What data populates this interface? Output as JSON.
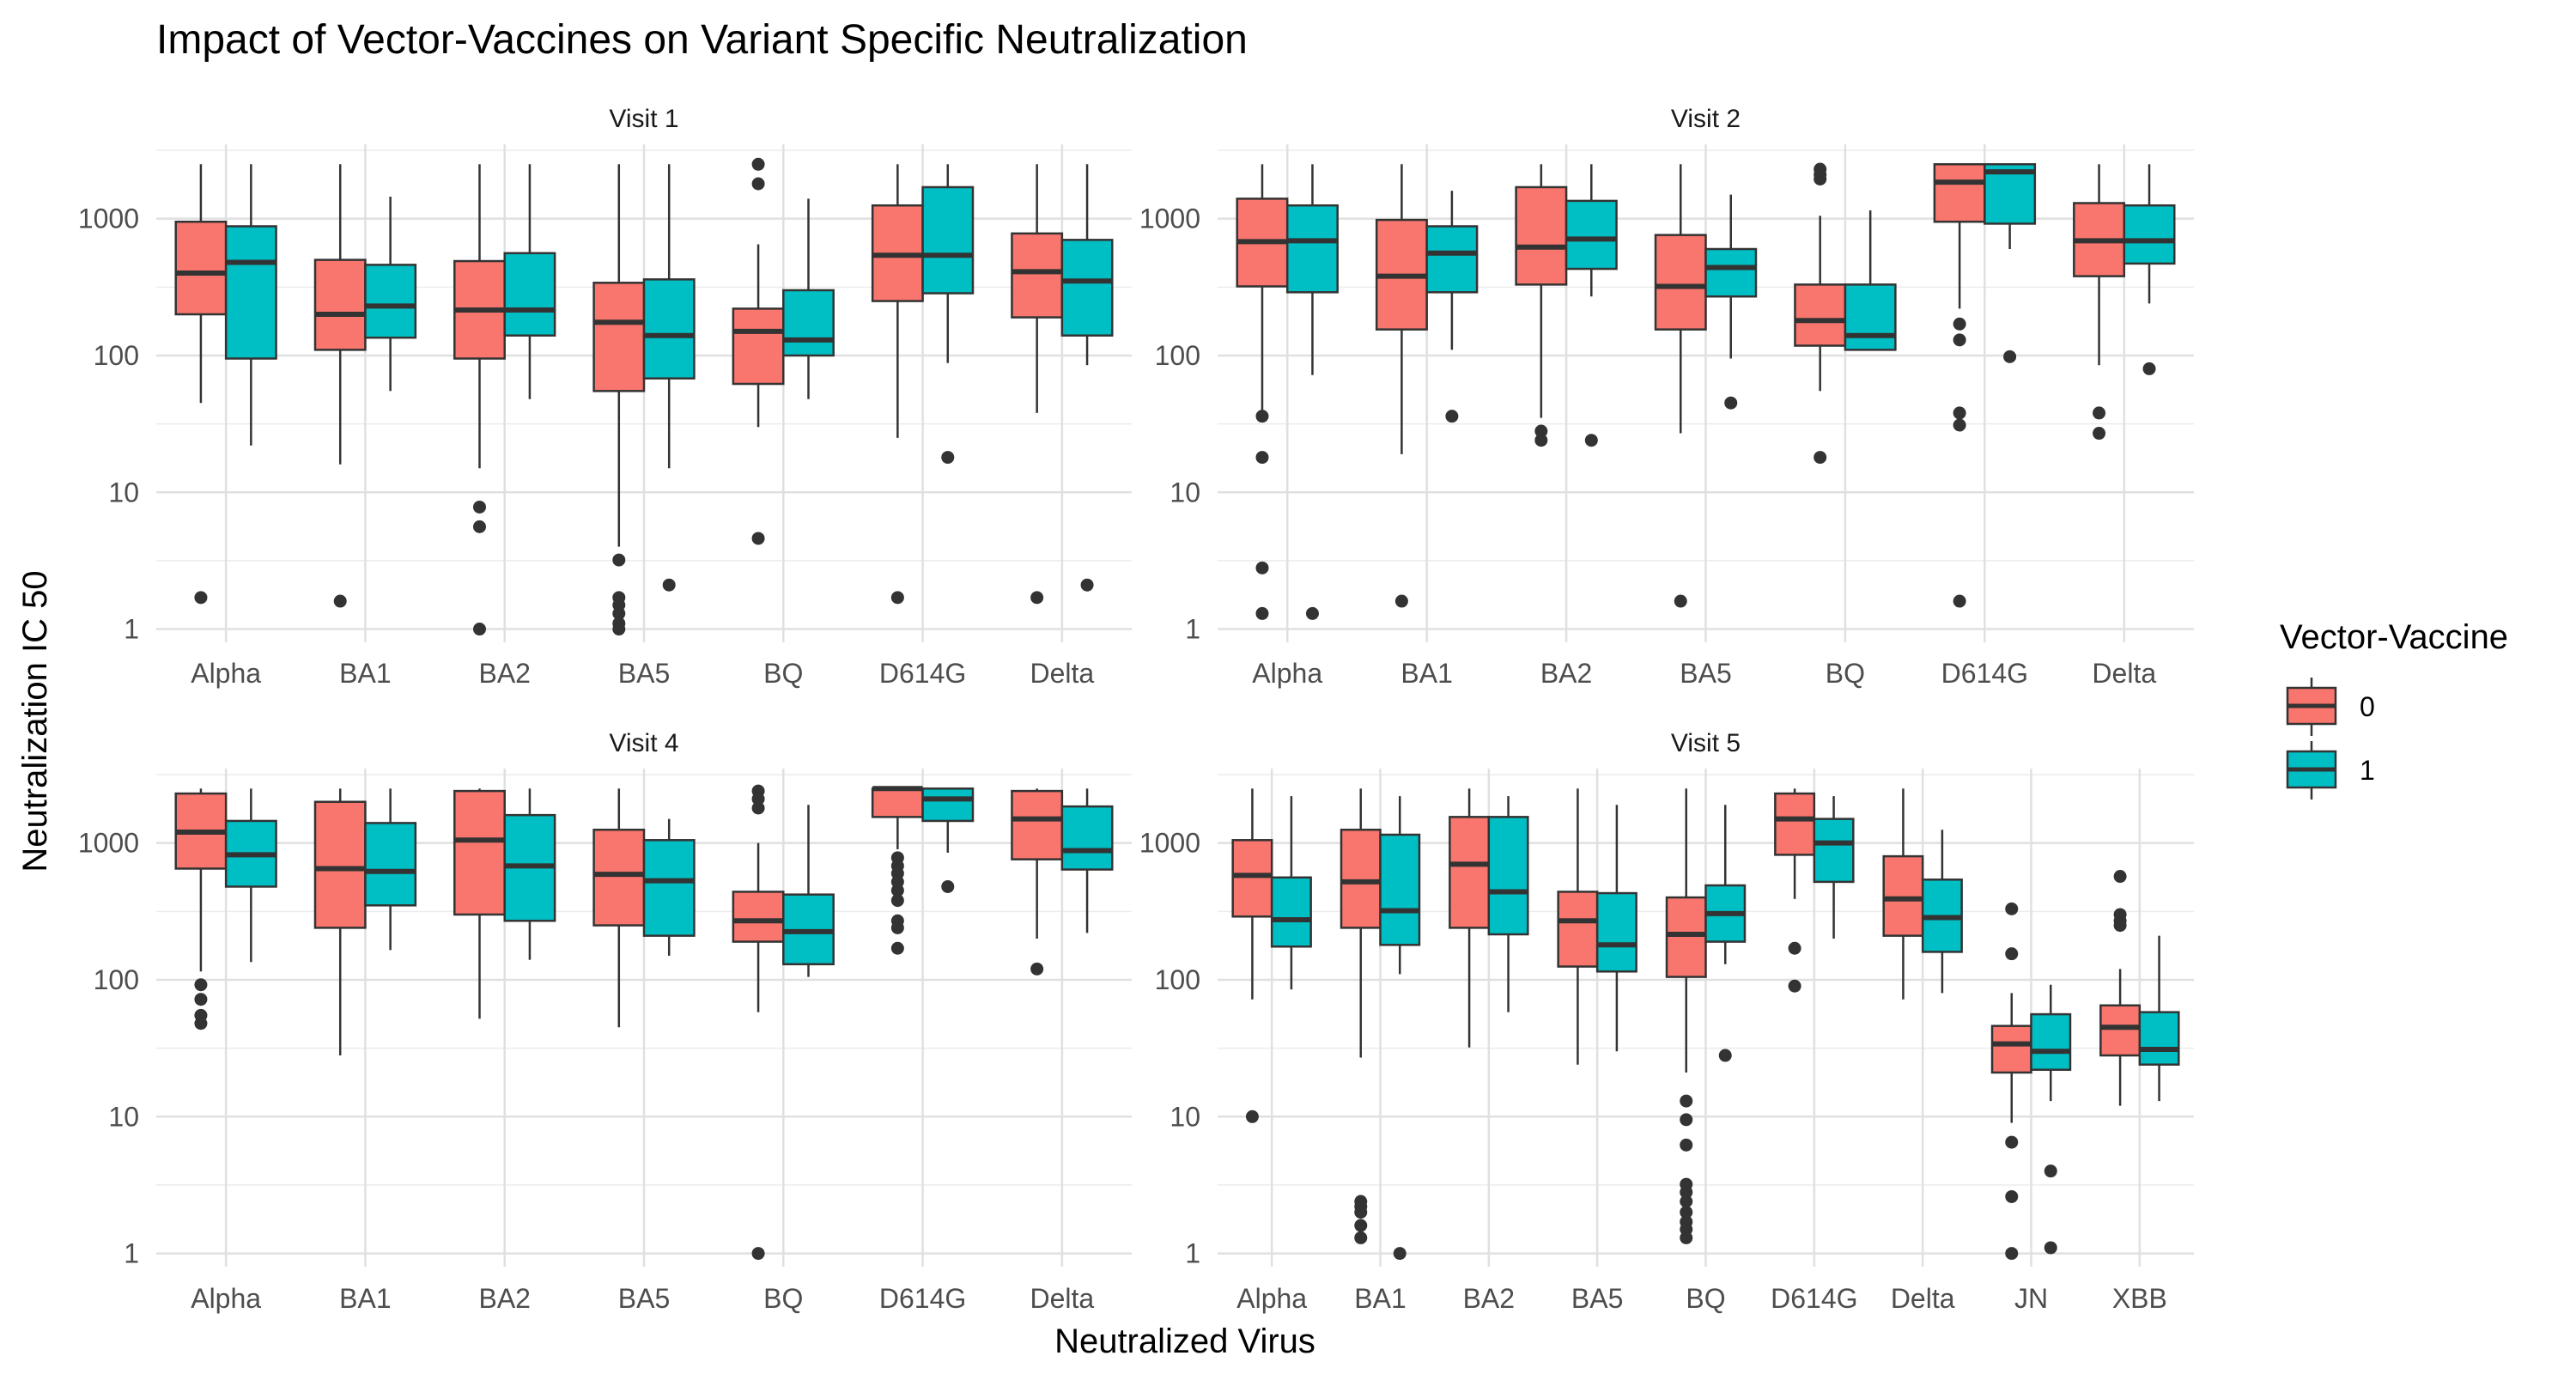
{
  "chart_data": {
    "type": "boxplot",
    "title": "Impact of Vector-Vaccines on Variant Specific Neutralization",
    "xlabel": "Neutralized Virus",
    "ylabel": "Neutralization IC 50",
    "y_scale": "log10",
    "y_ticks": [
      "1",
      "10",
      "100",
      "1000"
    ],
    "legend": {
      "title": "Vector-Vaccine",
      "position": "right",
      "items": [
        {
          "label": "0",
          "color": "#F8766D"
        },
        {
          "label": "1",
          "color": "#00BFC4"
        }
      ]
    },
    "panels": [
      {
        "name": "Visit 1",
        "ylim": [
          0.8,
          3500
        ],
        "categories": [
          "Alpha",
          "BA1",
          "BA2",
          "BA5",
          "BQ",
          "D614G",
          "Delta"
        ],
        "series": [
          {
            "name": "0",
            "boxes": [
              {
                "lo": 45,
                "q1": 200,
                "med": 400,
                "q3": 950,
                "hi": 2500,
                "out": [
                  1.7
                ]
              },
              {
                "lo": 16,
                "q1": 110,
                "med": 200,
                "q3": 500,
                "hi": 2500,
                "out": [
                  1.6
                ]
              },
              {
                "lo": 15,
                "q1": 95,
                "med": 215,
                "q3": 490,
                "hi": 2500,
                "out": [
                  7.8,
                  5.6,
                  1
                ]
              },
              {
                "lo": 4,
                "q1": 55,
                "med": 175,
                "q3": 340,
                "hi": 2500,
                "out": [
                  3.2,
                  1.7,
                  1.5,
                  1.3,
                  1.1,
                  1
                ]
              },
              {
                "lo": 30,
                "q1": 62,
                "med": 150,
                "q3": 220,
                "hi": 650,
                "out": [
                  2500,
                  1800,
                  4.6
                ]
              },
              {
                "lo": 25,
                "q1": 250,
                "med": 540,
                "q3": 1250,
                "hi": 2500,
                "out": [
                  1.7
                ]
              },
              {
                "lo": 38,
                "q1": 190,
                "med": 410,
                "q3": 780,
                "hi": 2500,
                "out": [
                  1.7
                ]
              }
            ]
          },
          {
            "name": "1",
            "boxes": [
              {
                "lo": 22,
                "q1": 95,
                "med": 480,
                "q3": 880,
                "hi": 2500,
                "out": []
              },
              {
                "lo": 55,
                "q1": 135,
                "med": 230,
                "q3": 460,
                "hi": 1450,
                "out": []
              },
              {
                "lo": 48,
                "q1": 140,
                "med": 215,
                "q3": 560,
                "hi": 2500,
                "out": []
              },
              {
                "lo": 15,
                "q1": 68,
                "med": 140,
                "q3": 360,
                "hi": 2500,
                "out": [
                  2.1
                ]
              },
              {
                "lo": 48,
                "q1": 100,
                "med": 130,
                "q3": 300,
                "hi": 1400,
                "out": []
              },
              {
                "lo": 88,
                "q1": 285,
                "med": 540,
                "q3": 1700,
                "hi": 2500,
                "out": [
                  18
                ]
              },
              {
                "lo": 85,
                "q1": 140,
                "med": 350,
                "q3": 700,
                "hi": 2500,
                "out": [
                  2.1
                ]
              }
            ]
          }
        ]
      },
      {
        "name": "Visit 2",
        "ylim": [
          0.8,
          3500
        ],
        "categories": [
          "Alpha",
          "BA1",
          "BA2",
          "BA5",
          "BQ",
          "D614G",
          "Delta"
        ],
        "series": [
          {
            "name": "0",
            "boxes": [
              {
                "lo": 40,
                "q1": 320,
                "med": 680,
                "q3": 1400,
                "hi": 2500,
                "out": [
                  36,
                  18,
                  2.8,
                  1.3
                ]
              },
              {
                "lo": 19,
                "q1": 155,
                "med": 380,
                "q3": 980,
                "hi": 2500,
                "out": [
                  1.6
                ]
              },
              {
                "lo": 35,
                "q1": 330,
                "med": 620,
                "q3": 1700,
                "hi": 2500,
                "out": [
                  28,
                  24
                ]
              },
              {
                "lo": 27,
                "q1": 155,
                "med": 320,
                "q3": 760,
                "hi": 2500,
                "out": [
                  1.6
                ]
              },
              {
                "lo": 55,
                "q1": 118,
                "med": 180,
                "q3": 330,
                "hi": 1050,
                "out": [
                  2300,
                  2100,
                  1950,
                  18
                ]
              },
              {
                "lo": 220,
                "q1": 950,
                "med": 1850,
                "q3": 2500,
                "hi": 2500,
                "out": [
                  170,
                  130,
                  38,
                  31,
                  1.6
                ]
              },
              {
                "lo": 85,
                "q1": 380,
                "med": 690,
                "q3": 1300,
                "hi": 2500,
                "out": [
                  38,
                  27
                ]
              }
            ]
          },
          {
            "name": "1",
            "boxes": [
              {
                "lo": 72,
                "q1": 290,
                "med": 690,
                "q3": 1250,
                "hi": 2500,
                "out": [
                  1.3
                ]
              },
              {
                "lo": 110,
                "q1": 290,
                "med": 560,
                "q3": 880,
                "hi": 1600,
                "out": [
                  36
                ]
              },
              {
                "lo": 270,
                "q1": 430,
                "med": 710,
                "q3": 1350,
                "hi": 2500,
                "out": [
                  24
                ]
              },
              {
                "lo": 95,
                "q1": 270,
                "med": 440,
                "q3": 600,
                "hi": 1500,
                "out": [
                  45
                ]
              },
              {
                "lo": 110,
                "q1": 110,
                "med": 140,
                "q3": 330,
                "hi": 1150,
                "out": []
              },
              {
                "lo": 600,
                "q1": 920,
                "med": 2200,
                "q3": 2500,
                "hi": 2500,
                "out": [
                  98
                ]
              },
              {
                "lo": 240,
                "q1": 470,
                "med": 690,
                "q3": 1250,
                "hi": 2500,
                "out": [
                  80
                ]
              }
            ]
          }
        ]
      },
      {
        "name": "Visit 4",
        "ylim": [
          0.8,
          3500
        ],
        "categories": [
          "Alpha",
          "BA1",
          "BA2",
          "BA5",
          "BQ",
          "D614G",
          "Delta"
        ],
        "series": [
          {
            "name": "0",
            "boxes": [
              {
                "lo": 115,
                "q1": 650,
                "med": 1200,
                "q3": 2300,
                "hi": 2500,
                "out": [
                  92,
                  72,
                  55,
                  48
                ]
              },
              {
                "lo": 28,
                "q1": 240,
                "med": 650,
                "q3": 2000,
                "hi": 2500,
                "out": []
              },
              {
                "lo": 52,
                "q1": 300,
                "med": 1050,
                "q3": 2400,
                "hi": 2500,
                "out": []
              },
              {
                "lo": 45,
                "q1": 250,
                "med": 590,
                "q3": 1250,
                "hi": 2500,
                "out": []
              },
              {
                "lo": 58,
                "q1": 190,
                "med": 270,
                "q3": 440,
                "hi": 1000,
                "out": [
                  2400,
                  2100,
                  1800,
                  1
                ]
              },
              {
                "lo": 900,
                "q1": 1550,
                "med": 2500,
                "q3": 2500,
                "hi": 2500,
                "out": [
                  780,
                  680,
                  600,
                  520,
                  450,
                  380,
                  270,
                  240,
                  170
                ]
              },
              {
                "lo": 200,
                "q1": 760,
                "med": 1500,
                "q3": 2400,
                "hi": 2500,
                "out": [
                  120
                ]
              }
            ]
          },
          {
            "name": "1",
            "boxes": [
              {
                "lo": 135,
                "q1": 480,
                "med": 820,
                "q3": 1450,
                "hi": 2500,
                "out": []
              },
              {
                "lo": 165,
                "q1": 350,
                "med": 620,
                "q3": 1400,
                "hi": 2500,
                "out": []
              },
              {
                "lo": 140,
                "q1": 270,
                "med": 680,
                "q3": 1600,
                "hi": 2500,
                "out": []
              },
              {
                "lo": 150,
                "q1": 210,
                "med": 530,
                "q3": 1050,
                "hi": 1500,
                "out": []
              },
              {
                "lo": 105,
                "q1": 130,
                "med": 225,
                "q3": 420,
                "hi": 1900,
                "out": []
              },
              {
                "lo": 850,
                "q1": 1450,
                "med": 2100,
                "q3": 2500,
                "hi": 2500,
                "out": [
                  480
                ]
              },
              {
                "lo": 220,
                "q1": 640,
                "med": 880,
                "q3": 1850,
                "hi": 2500,
                "out": []
              }
            ]
          }
        ]
      },
      {
        "name": "Visit 5",
        "ylim": [
          0.8,
          3500
        ],
        "categories": [
          "Alpha",
          "BA1",
          "BA2",
          "BA5",
          "BQ",
          "D614G",
          "Delta",
          "JN",
          "XBB"
        ],
        "series": [
          {
            "name": "0",
            "boxes": [
              {
                "lo": 72,
                "q1": 290,
                "med": 580,
                "q3": 1050,
                "hi": 2500,
                "out": [
                  10
                ]
              },
              {
                "lo": 27,
                "q1": 240,
                "med": 520,
                "q3": 1250,
                "hi": 2500,
                "out": [
                  2.4,
                  2.2,
                  2.0,
                  1.6,
                  1.3
                ]
              },
              {
                "lo": 32,
                "q1": 240,
                "med": 700,
                "q3": 1550,
                "hi": 2500,
                "out": []
              },
              {
                "lo": 24,
                "q1": 125,
                "med": 270,
                "q3": 440,
                "hi": 2500,
                "out": []
              },
              {
                "lo": 21,
                "q1": 105,
                "med": 215,
                "q3": 400,
                "hi": 2500,
                "out": [
                  13,
                  9.5,
                  6.2,
                  3.2,
                  2.8,
                  2.4,
                  2.0,
                  1.7,
                  1.5,
                  1.3
                ]
              },
              {
                "lo": 390,
                "q1": 820,
                "med": 1500,
                "q3": 2300,
                "hi": 2500,
                "out": [
                  170,
                  90
                ]
              },
              {
                "lo": 72,
                "q1": 210,
                "med": 390,
                "q3": 800,
                "hi": 2500,
                "out": []
              },
              {
                "lo": 9,
                "q1": 21,
                "med": 34,
                "q3": 46,
                "hi": 80,
                "out": [
                  330,
                  155,
                  6.5,
                  2.6,
                  1
                ]
              },
              {
                "lo": 12,
                "q1": 28,
                "med": 45,
                "q3": 65,
                "hi": 120,
                "out": [
                  570,
                  300,
                  270,
                  250
                ]
              }
            ]
          },
          {
            "name": "1",
            "boxes": [
              {
                "lo": 85,
                "q1": 175,
                "med": 275,
                "q3": 560,
                "hi": 2200,
                "out": []
              },
              {
                "lo": 110,
                "q1": 180,
                "med": 320,
                "q3": 1150,
                "hi": 2200,
                "out": [
                  1
                ]
              },
              {
                "lo": 58,
                "q1": 215,
                "med": 440,
                "q3": 1550,
                "hi": 2200,
                "out": []
              },
              {
                "lo": 30,
                "q1": 115,
                "med": 180,
                "q3": 430,
                "hi": 1900,
                "out": []
              },
              {
                "lo": 130,
                "q1": 190,
                "med": 305,
                "q3": 490,
                "hi": 1900,
                "out": [
                  28
                ]
              },
              {
                "lo": 200,
                "q1": 520,
                "med": 1000,
                "q3": 1500,
                "hi": 2200,
                "out": []
              },
              {
                "lo": 80,
                "q1": 160,
                "med": 285,
                "q3": 540,
                "hi": 1250,
                "out": []
              },
              {
                "lo": 13,
                "q1": 22,
                "med": 30,
                "q3": 56,
                "hi": 92,
                "out": [
                  4,
                  1.1
                ]
              },
              {
                "lo": 13,
                "q1": 24,
                "med": 31,
                "q3": 58,
                "hi": 210,
                "out": []
              }
            ]
          }
        ]
      }
    ]
  }
}
